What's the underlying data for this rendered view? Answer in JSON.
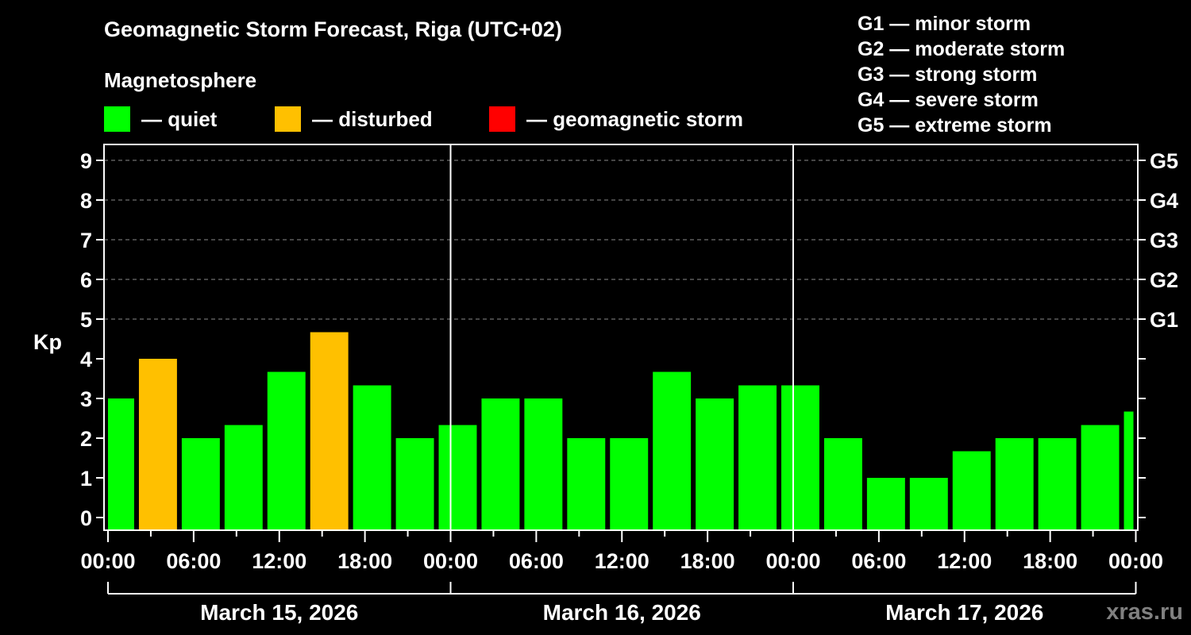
{
  "header": {
    "title": "Geomagnetic Storm Forecast, Riga (UTC+02)",
    "subtitle": "Magnetosphere"
  },
  "legend": [
    {
      "label": "— quiet",
      "color": "#00ff00"
    },
    {
      "label": "— disturbed",
      "color": "#ffc000"
    },
    {
      "label": "— geomagnetic storm",
      "color": "#ff0000"
    }
  ],
  "gscale": [
    "G1 — minor storm",
    "G2 — moderate storm",
    "G3 — strong storm",
    "G4 — severe storm",
    "G5 — extreme storm"
  ],
  "watermark": "xras.ru",
  "chart_data": {
    "type": "bar",
    "title": "Geomagnetic Storm Forecast, Riga (UTC+02)",
    "xlabel": "",
    "ylabel": "Kp",
    "ylim": [
      0,
      9
    ],
    "yticks": [
      0,
      1,
      2,
      3,
      4,
      5,
      6,
      7,
      8,
      9
    ],
    "right_axis_labels": [
      {
        "value": 5,
        "label": "G1"
      },
      {
        "value": 6,
        "label": "G2"
      },
      {
        "value": 7,
        "label": "G3"
      },
      {
        "value": 8,
        "label": "G4"
      },
      {
        "value": 9,
        "label": "G5"
      }
    ],
    "grid": "horizontal dashed at Kp 5-9",
    "x_tick_labels": [
      "00:00",
      "06:00",
      "12:00",
      "18:00",
      "00:00",
      "06:00",
      "12:00",
      "18:00",
      "00:00",
      "06:00",
      "12:00",
      "18:00",
      "00:00"
    ],
    "days": [
      "March 15, 2026",
      "March 16, 2026",
      "March 17, 2026"
    ],
    "bar_interval_hours": 3,
    "bars": [
      {
        "start": "Mar 15 00:00",
        "end": "Mar 15 02:00",
        "kp": 3.0,
        "state": "quiet"
      },
      {
        "start": "Mar 15 02:00",
        "end": "Mar 15 05:00",
        "kp": 4.0,
        "state": "disturbed"
      },
      {
        "start": "Mar 15 05:00",
        "end": "Mar 15 08:00",
        "kp": 2.0,
        "state": "quiet"
      },
      {
        "start": "Mar 15 08:00",
        "end": "Mar 15 11:00",
        "kp": 2.33,
        "state": "quiet"
      },
      {
        "start": "Mar 15 11:00",
        "end": "Mar 15 14:00",
        "kp": 3.67,
        "state": "quiet"
      },
      {
        "start": "Mar 15 14:00",
        "end": "Mar 15 17:00",
        "kp": 4.67,
        "state": "disturbed"
      },
      {
        "start": "Mar 15 17:00",
        "end": "Mar 15 20:00",
        "kp": 3.33,
        "state": "quiet"
      },
      {
        "start": "Mar 15 20:00",
        "end": "Mar 15 23:00",
        "kp": 2.0,
        "state": "quiet"
      },
      {
        "start": "Mar 15 23:00",
        "end": "Mar 16 02:00",
        "kp": 2.33,
        "state": "quiet"
      },
      {
        "start": "Mar 16 02:00",
        "end": "Mar 16 05:00",
        "kp": 3.0,
        "state": "quiet"
      },
      {
        "start": "Mar 16 05:00",
        "end": "Mar 16 08:00",
        "kp": 3.0,
        "state": "quiet"
      },
      {
        "start": "Mar 16 08:00",
        "end": "Mar 16 11:00",
        "kp": 2.0,
        "state": "quiet"
      },
      {
        "start": "Mar 16 11:00",
        "end": "Mar 16 14:00",
        "kp": 2.0,
        "state": "quiet"
      },
      {
        "start": "Mar 16 14:00",
        "end": "Mar 16 17:00",
        "kp": 3.67,
        "state": "quiet"
      },
      {
        "start": "Mar 16 17:00",
        "end": "Mar 16 20:00",
        "kp": 3.0,
        "state": "quiet"
      },
      {
        "start": "Mar 16 20:00",
        "end": "Mar 16 23:00",
        "kp": 3.33,
        "state": "quiet"
      },
      {
        "start": "Mar 16 23:00",
        "end": "Mar 17 02:00",
        "kp": 3.33,
        "state": "quiet"
      },
      {
        "start": "Mar 17 02:00",
        "end": "Mar 17 05:00",
        "kp": 2.0,
        "state": "quiet"
      },
      {
        "start": "Mar 17 05:00",
        "end": "Mar 17 08:00",
        "kp": 1.0,
        "state": "quiet"
      },
      {
        "start": "Mar 17 08:00",
        "end": "Mar 17 11:00",
        "kp": 1.0,
        "state": "quiet"
      },
      {
        "start": "Mar 17 11:00",
        "end": "Mar 17 14:00",
        "kp": 1.67,
        "state": "quiet"
      },
      {
        "start": "Mar 17 14:00",
        "end": "Mar 17 17:00",
        "kp": 2.0,
        "state": "quiet"
      },
      {
        "start": "Mar 17 17:00",
        "end": "Mar 17 20:00",
        "kp": 2.0,
        "state": "quiet"
      },
      {
        "start": "Mar 17 20:00",
        "end": "Mar 17 23:00",
        "kp": 2.33,
        "state": "quiet"
      },
      {
        "start": "Mar 17 23:00",
        "end": "Mar 18 00:00",
        "kp": 2.67,
        "state": "quiet"
      }
    ],
    "bar_hours": [
      [
        0,
        2
      ],
      [
        2,
        5
      ],
      [
        5,
        8
      ],
      [
        8,
        11
      ],
      [
        11,
        14
      ],
      [
        14,
        17
      ],
      [
        17,
        20
      ],
      [
        20,
        23
      ],
      [
        23,
        26
      ],
      [
        26,
        29
      ],
      [
        29,
        32
      ],
      [
        32,
        35
      ],
      [
        35,
        38
      ],
      [
        38,
        41
      ],
      [
        41,
        44
      ],
      [
        44,
        47
      ],
      [
        47,
        50
      ],
      [
        50,
        53
      ],
      [
        53,
        56
      ],
      [
        56,
        59
      ],
      [
        59,
        62
      ],
      [
        62,
        65
      ],
      [
        65,
        68
      ],
      [
        68,
        71
      ],
      [
        71,
        72
      ]
    ],
    "state_colors": {
      "quiet": "#00ff00",
      "disturbed": "#ffc000",
      "storm": "#ff0000"
    }
  }
}
